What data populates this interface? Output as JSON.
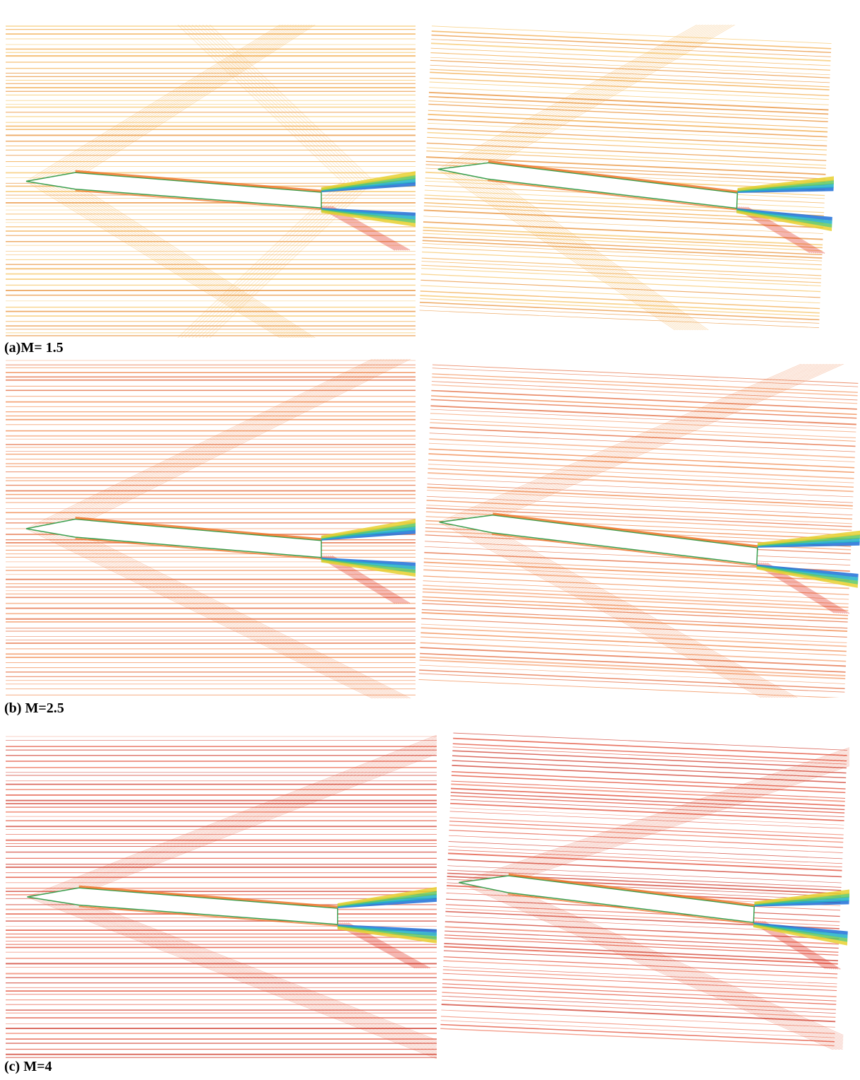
{
  "figure": {
    "captions": [
      "(a)M= 1.5",
      "(b) M=2.5",
      "(c) M=4"
    ]
  }
}
